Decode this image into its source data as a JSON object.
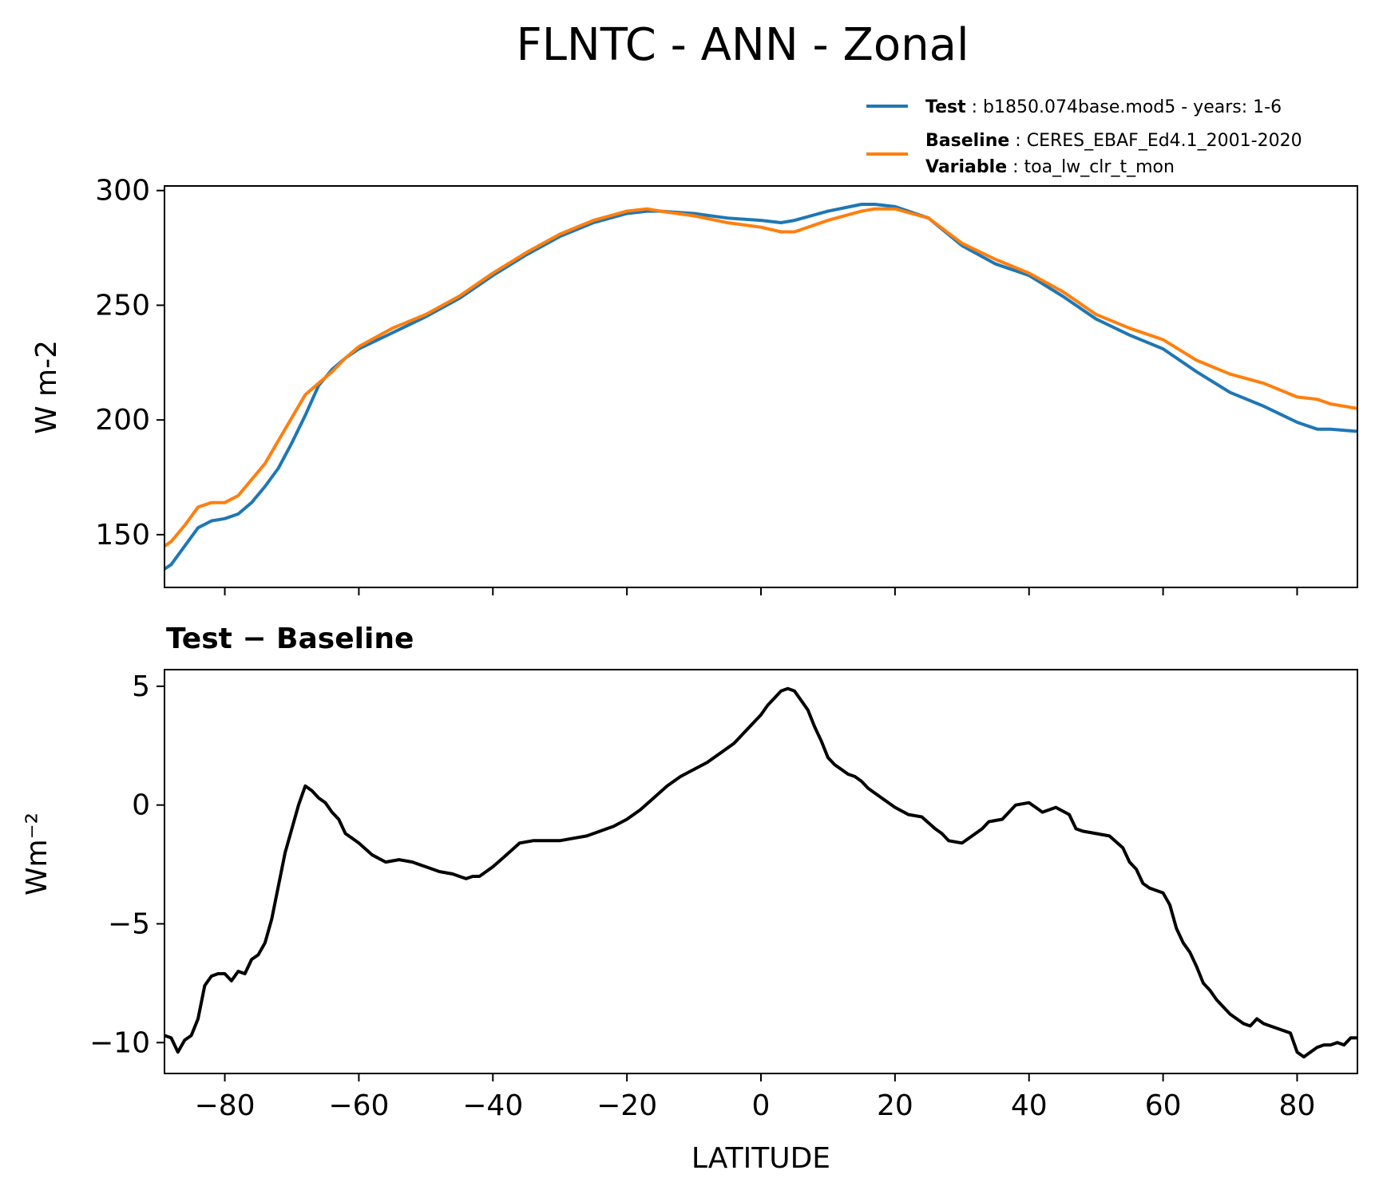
{
  "figure_title": "FLNTC - ANN - Zonal",
  "legend": {
    "test": {
      "key": "Test",
      "value": "b1850.074base.mod5 - years: 1-6",
      "color": "#1f77b4"
    },
    "baseline": {
      "key": "Baseline",
      "value": "CERES_EBAF_Ed4.1_2001-2020",
      "color": "#ff7f0e"
    },
    "variable": {
      "key": "Variable",
      "value": "toa_lw_clr_t_mon"
    }
  },
  "chart_data": [
    {
      "type": "line",
      "title": "",
      "xlabel": "",
      "ylabel": "W m-2",
      "xlim": [
        -89,
        89
      ],
      "ylim": [
        127,
        302
      ],
      "yticks": [
        150,
        200,
        250,
        300
      ],
      "ytick_labels": [
        "150",
        "200",
        "250",
        "300"
      ],
      "xticks": [
        -80,
        -60,
        -40,
        -20,
        0,
        20,
        40,
        60,
        80
      ],
      "series": [
        {
          "name": "Test",
          "color": "#1f77b4",
          "x": [
            -89,
            -88,
            -86,
            -84,
            -82,
            -80,
            -78,
            -76,
            -74,
            -72,
            -70,
            -68,
            -66,
            -64,
            -62,
            -60,
            -55,
            -50,
            -45,
            -40,
            -35,
            -30,
            -25,
            -20,
            -17,
            -15,
            -10,
            -5,
            0,
            3,
            5,
            10,
            15,
            17,
            20,
            25,
            30,
            35,
            40,
            45,
            50,
            55,
            60,
            65,
            70,
            75,
            80,
            83,
            85,
            89
          ],
          "values": [
            135,
            137,
            145,
            153,
            156,
            157,
            159,
            164,
            171,
            179,
            190,
            202,
            215,
            222,
            227,
            231,
            238,
            245,
            253,
            263,
            272,
            280,
            286,
            290,
            291,
            291,
            290,
            288,
            287,
            286,
            287,
            291,
            294,
            294,
            293,
            288,
            276,
            268,
            263,
            254,
            244,
            237,
            231,
            221,
            212,
            206,
            199,
            196,
            196,
            195
          ]
        },
        {
          "name": "Baseline",
          "color": "#ff7f0e",
          "x": [
            -89,
            -88,
            -86,
            -84,
            -82,
            -80,
            -78,
            -76,
            -74,
            -72,
            -70,
            -68,
            -66,
            -64,
            -62,
            -60,
            -55,
            -50,
            -45,
            -40,
            -35,
            -30,
            -25,
            -20,
            -17,
            -15,
            -10,
            -5,
            0,
            3,
            5,
            10,
            15,
            17,
            20,
            25,
            30,
            35,
            40,
            45,
            50,
            55,
            60,
            65,
            70,
            75,
            80,
            83,
            85,
            89
          ],
          "values": [
            145,
            147,
            154,
            162,
            164,
            164,
            167,
            174,
            181,
            191,
            201,
            211,
            216,
            221,
            227,
            232,
            240,
            246,
            254,
            264,
            273,
            281,
            287,
            291,
            292,
            291,
            289,
            286,
            284,
            282,
            282,
            287,
            291,
            292,
            292,
            288,
            277,
            270,
            264,
            256,
            246,
            240,
            235,
            226,
            220,
            216,
            210,
            209,
            207,
            205
          ]
        }
      ]
    },
    {
      "type": "line",
      "title": "Test − Baseline",
      "xlabel": "LATITUDE",
      "ylabel": "Wm⁻²",
      "xlim": [
        -89,
        89
      ],
      "ylim": [
        -11.3,
        5.7
      ],
      "yticks": [
        -10,
        -5,
        0,
        5
      ],
      "ytick_labels": [
        "−10",
        "−5",
        "0",
        "5"
      ],
      "xticks": [
        -80,
        -60,
        -40,
        -20,
        0,
        20,
        40,
        60,
        80
      ],
      "xtick_labels": [
        "−80",
        "−60",
        "−40",
        "−20",
        "0",
        "20",
        "40",
        "60",
        "80"
      ],
      "series": [
        {
          "name": "Test − Baseline",
          "color": "#000000",
          "x": [
            -89,
            -88,
            -87,
            -86,
            -85,
            -84,
            -83,
            -82,
            -81,
            -80,
            -79,
            -78,
            -77,
            -76,
            -75,
            -74,
            -73,
            -72,
            -71,
            -70,
            -69,
            -68,
            -67,
            -66,
            -65,
            -64,
            -63,
            -62,
            -61,
            -60,
            -58,
            -56,
            -54,
            -52,
            -51,
            -50,
            -48,
            -46,
            -45,
            -44,
            -43,
            -42,
            -41,
            -40,
            -38,
            -36,
            -34,
            -32,
            -30,
            -28,
            -26,
            -24,
            -22,
            -20,
            -18,
            -16,
            -14,
            -12,
            -10,
            -8,
            -6,
            -4,
            -2,
            0,
            1,
            2,
            3,
            4,
            5,
            6,
            7,
            8,
            9,
            10,
            11,
            12,
            13,
            14,
            15,
            16,
            18,
            20,
            22,
            24,
            26,
            27,
            28,
            30,
            32,
            33,
            34,
            36,
            38,
            40,
            41,
            42,
            44,
            46,
            47,
            48,
            50,
            52,
            54,
            55,
            56,
            57,
            58,
            60,
            61,
            62,
            63,
            64,
            65,
            66,
            67,
            68,
            70,
            72,
            73,
            74,
            75,
            76,
            78,
            79,
            80,
            81,
            82,
            83,
            84,
            85,
            86,
            87,
            88,
            89
          ],
          "values": [
            -9.7,
            -9.8,
            -10.4,
            -9.9,
            -9.7,
            -9.0,
            -7.6,
            -7.2,
            -7.1,
            -7.1,
            -7.4,
            -7.0,
            -7.1,
            -6.5,
            -6.3,
            -5.8,
            -4.8,
            -3.4,
            -2.0,
            -1.0,
            0.0,
            0.8,
            0.6,
            0.3,
            0.1,
            -0.3,
            -0.6,
            -1.2,
            -1.4,
            -1.6,
            -2.1,
            -2.4,
            -2.3,
            -2.4,
            -2.5,
            -2.6,
            -2.8,
            -2.9,
            -3.0,
            -3.1,
            -3.0,
            -3.0,
            -2.8,
            -2.6,
            -2.1,
            -1.6,
            -1.5,
            -1.5,
            -1.5,
            -1.4,
            -1.3,
            -1.1,
            -0.9,
            -0.6,
            -0.2,
            0.3,
            0.8,
            1.2,
            1.5,
            1.8,
            2.2,
            2.6,
            3.2,
            3.8,
            4.2,
            4.5,
            4.8,
            4.9,
            4.8,
            4.4,
            4.0,
            3.3,
            2.7,
            2.0,
            1.7,
            1.5,
            1.3,
            1.2,
            1.0,
            0.7,
            0.3,
            -0.1,
            -0.4,
            -0.5,
            -1.0,
            -1.2,
            -1.5,
            -1.6,
            -1.2,
            -1.0,
            -0.7,
            -0.6,
            0.0,
            0.1,
            -0.1,
            -0.3,
            -0.1,
            -0.4,
            -1.0,
            -1.1,
            -1.2,
            -1.3,
            -1.8,
            -2.4,
            -2.7,
            -3.3,
            -3.5,
            -3.7,
            -4.2,
            -5.2,
            -5.8,
            -6.2,
            -6.8,
            -7.5,
            -7.8,
            -8.2,
            -8.8,
            -9.2,
            -9.3,
            -9.0,
            -9.2,
            -9.3,
            -9.5,
            -9.6,
            -10.4,
            -10.6,
            -10.4,
            -10.2,
            -10.1,
            -10.1,
            -10.0,
            -10.1,
            -9.8,
            -9.8
          ]
        }
      ]
    }
  ]
}
